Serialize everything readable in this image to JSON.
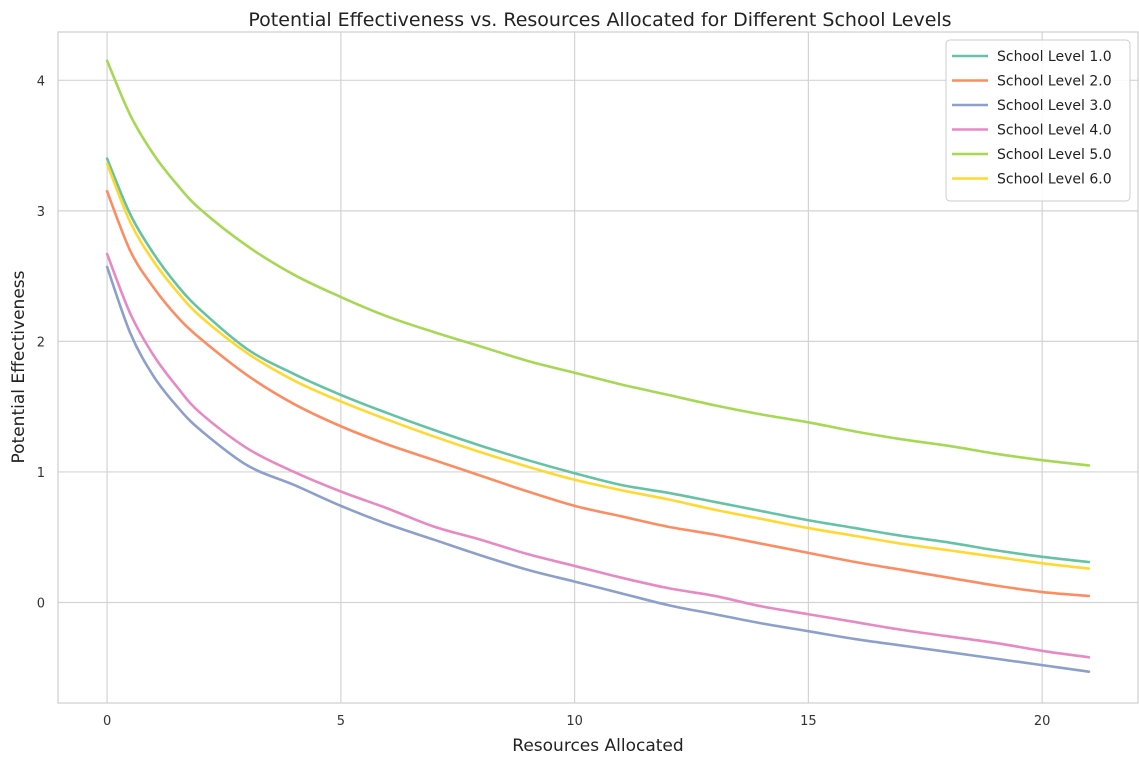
{
  "chart_data": {
    "type": "line",
    "title": "Potential Effectiveness vs. Resources Allocated for Different School Levels",
    "xlabel": "Resources Allocated",
    "ylabel": "Potential Effectiveness",
    "xlim": [
      -1.05,
      22.05
    ],
    "ylim": [
      -0.77,
      4.37
    ],
    "xticks": [
      0,
      5,
      10,
      15,
      20
    ],
    "yticks": [
      0,
      1,
      2,
      3,
      4
    ],
    "grid": true,
    "legend_position": "top-right",
    "series": [
      {
        "name": "School Level 1.0",
        "color": "#66c2a5",
        "x": [
          0,
          0.5,
          1,
          1.5,
          2,
          3,
          4,
          5,
          6,
          7,
          8,
          9,
          10,
          11,
          12,
          13,
          14,
          15,
          16,
          17,
          18,
          19,
          20,
          21
        ],
        "y": [
          3.4,
          2.97,
          2.67,
          2.43,
          2.24,
          1.94,
          1.75,
          1.59,
          1.45,
          1.32,
          1.2,
          1.09,
          0.99,
          0.9,
          0.84,
          0.77,
          0.7,
          0.63,
          0.57,
          0.51,
          0.46,
          0.4,
          0.35,
          0.31
        ]
      },
      {
        "name": "School Level 2.0",
        "color": "#fc8d62",
        "x": [
          0,
          0.5,
          1,
          1.5,
          2,
          3,
          4,
          5,
          6,
          7,
          8,
          9,
          10,
          11,
          12,
          13,
          14,
          15,
          16,
          17,
          18,
          19,
          20,
          21
        ],
        "y": [
          3.15,
          2.69,
          2.41,
          2.19,
          2.02,
          1.74,
          1.52,
          1.35,
          1.21,
          1.09,
          0.97,
          0.85,
          0.74,
          0.66,
          0.58,
          0.52,
          0.45,
          0.38,
          0.31,
          0.25,
          0.19,
          0.13,
          0.08,
          0.05
        ]
      },
      {
        "name": "School Level 3.0",
        "color": "#8da0cb",
        "x": [
          0,
          0.5,
          1,
          1.5,
          2,
          3,
          4,
          5,
          6,
          7,
          8,
          9,
          10,
          11,
          12,
          13,
          14,
          15,
          16,
          17,
          18,
          19,
          20,
          21
        ],
        "y": [
          2.57,
          2.06,
          1.73,
          1.5,
          1.32,
          1.05,
          0.9,
          0.74,
          0.6,
          0.48,
          0.36,
          0.25,
          0.16,
          0.07,
          -0.02,
          -0.09,
          -0.16,
          -0.22,
          -0.28,
          -0.33,
          -0.38,
          -0.43,
          -0.48,
          -0.53
        ]
      },
      {
        "name": "School Level 4.0",
        "color": "#e78ac3",
        "x": [
          0,
          0.5,
          1,
          1.5,
          2,
          3,
          4,
          5,
          6,
          7,
          8,
          9,
          10,
          11,
          12,
          13,
          14,
          15,
          16,
          17,
          18,
          19,
          20,
          21
        ],
        "y": [
          2.67,
          2.21,
          1.89,
          1.65,
          1.45,
          1.18,
          1.0,
          0.85,
          0.72,
          0.58,
          0.48,
          0.37,
          0.28,
          0.19,
          0.11,
          0.05,
          -0.03,
          -0.09,
          -0.15,
          -0.21,
          -0.26,
          -0.31,
          -0.37,
          -0.42
        ]
      },
      {
        "name": "School Level 5.0",
        "color": "#a6d854",
        "x": [
          0,
          0.5,
          1,
          1.5,
          2,
          3,
          4,
          5,
          6,
          7,
          8,
          9,
          10,
          11,
          12,
          13,
          14,
          15,
          16,
          17,
          18,
          19,
          20,
          21
        ],
        "y": [
          4.15,
          3.73,
          3.43,
          3.2,
          3.01,
          2.73,
          2.51,
          2.34,
          2.19,
          2.07,
          1.96,
          1.85,
          1.76,
          1.67,
          1.59,
          1.51,
          1.44,
          1.38,
          1.31,
          1.25,
          1.2,
          1.14,
          1.09,
          1.05
        ]
      },
      {
        "name": "School Level 6.0",
        "color": "#ffd92f",
        "x": [
          0,
          0.5,
          1,
          1.5,
          2,
          3,
          4,
          5,
          6,
          7,
          8,
          9,
          10,
          11,
          12,
          13,
          14,
          15,
          16,
          17,
          18,
          19,
          20,
          21
        ],
        "y": [
          3.36,
          2.91,
          2.61,
          2.38,
          2.19,
          1.91,
          1.7,
          1.54,
          1.4,
          1.27,
          1.15,
          1.04,
          0.94,
          0.86,
          0.79,
          0.71,
          0.64,
          0.57,
          0.51,
          0.45,
          0.4,
          0.35,
          0.3,
          0.26
        ]
      }
    ]
  }
}
